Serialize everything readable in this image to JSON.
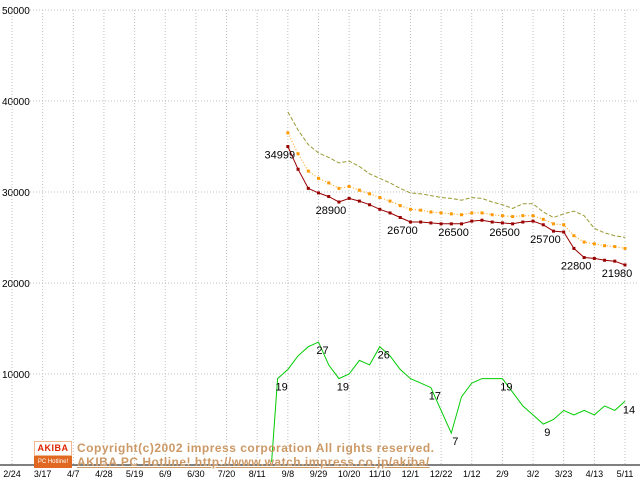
{
  "watermark": {
    "logo_top": "AKIBA",
    "logo_bottom": "PC Hotline!",
    "line1": "Copyright(c)2002 impress corporation All rights reserved.",
    "line2": "AKIBA PC Hotline! http://www.watch.impress.co.jp/akiba/",
    "color": "#cc9966"
  },
  "chart_data": {
    "type": "line",
    "title": "",
    "xlabel": "",
    "ylabel": "",
    "ylim": [
      0,
      50000
    ],
    "grid": true,
    "grid_color": "#c0c0c0",
    "legend": "none",
    "count_per_gridline": 20,
    "y_ticks": [
      50000,
      40000,
      30000,
      20000,
      10000
    ],
    "x_tick_labels": [
      "2/24",
      "3/17",
      "4/7",
      "4/28",
      "5/19",
      "6/9",
      "6/30",
      "7/20",
      "8/11",
      "9/8",
      "9/29",
      "10/20",
      "11/10",
      "12/1",
      "12/22",
      "1/12",
      "2/9",
      "3/2",
      "3/23",
      "4/13",
      "5/11"
    ],
    "series": [
      {
        "name": "highest-price",
        "color": "#999933",
        "dash": "4,2",
        "markers": false,
        "start_week": 27,
        "values": [
          38800,
          36800,
          35200,
          34300,
          33800,
          33200,
          33400,
          32800,
          32000,
          31500,
          31000,
          30400,
          29900,
          29800,
          29600,
          29400,
          29300,
          29100,
          29400,
          29300,
          28900,
          28600,
          28200,
          28700,
          28700,
          27800,
          27200,
          27600,
          27900,
          27400,
          26000,
          25500,
          25200,
          25000
        ]
      },
      {
        "name": "average-price",
        "color": "#ff9900",
        "dash": "1,2",
        "markers": true,
        "start_week": 27,
        "values": [
          36500,
          34200,
          32300,
          31500,
          31000,
          30400,
          30600,
          30200,
          29800,
          29400,
          29000,
          28500,
          28100,
          28000,
          27800,
          27700,
          27600,
          27500,
          27700,
          27700,
          27500,
          27400,
          27300,
          27400,
          27400,
          27000,
          26500,
          26400,
          25200,
          24500,
          24300,
          24100,
          24000,
          23800
        ]
      },
      {
        "name": "lowest-price",
        "color": "#990000",
        "markers": true,
        "start_week": 27,
        "values": [
          34999,
          32500,
          30400,
          29900,
          29500,
          28900,
          29300,
          29000,
          28600,
          28100,
          27700,
          27200,
          26700,
          26700,
          26600,
          26500,
          26500,
          26500,
          26800,
          26900,
          26700,
          26600,
          26500,
          26700,
          26800,
          26400,
          25700,
          25600,
          23800,
          22800,
          22700,
          22500,
          22400,
          21980
        ],
        "labels": {
          "0": "34999",
          "5": "28900",
          "12": "26700",
          "17": "26500",
          "22": "26500",
          "26": "25700",
          "29": "22800",
          "33": "21980"
        }
      },
      {
        "name": "shop-count",
        "color": "#00cc00",
        "axis": "count",
        "markers": false,
        "rise_from_axis": true,
        "start_week": 26,
        "values": [
          19,
          21,
          24,
          26,
          27,
          22,
          19,
          20,
          23,
          22,
          26,
          24,
          21,
          19,
          18,
          17,
          12,
          7,
          15,
          18,
          19,
          19,
          19,
          16,
          13,
          11,
          9,
          10,
          12,
          11,
          12,
          11,
          13,
          12,
          14
        ],
        "labels": {
          "0": "19",
          "4": "27",
          "6": "19",
          "10": "26",
          "15": "17",
          "17": "7",
          "22": "19",
          "26": "9",
          "34": "14"
        }
      }
    ]
  }
}
